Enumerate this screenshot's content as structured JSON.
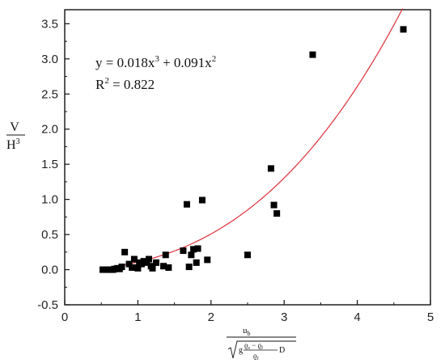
{
  "chart_data": {
    "type": "scatter",
    "xlim": [
      0,
      5
    ],
    "ylim": [
      -0.5,
      3.7
    ],
    "x_ticks": [
      0,
      1,
      2,
      3,
      4,
      5
    ],
    "y_ticks": [
      -0.5,
      0.0,
      0.5,
      1.0,
      1.5,
      2.0,
      2.5,
      3.0,
      3.5
    ],
    "x_tick_labels": [
      "0",
      "1",
      "2",
      "3",
      "4",
      "5"
    ],
    "y_tick_labels": [
      "-0.5",
      "0.0",
      "0.5",
      "1.0",
      "1.5",
      "2.0",
      "2.5",
      "3.0",
      "3.5"
    ],
    "ylabel": {
      "numerator": "V",
      "denominator": "H",
      "denominator_sup": "3"
    },
    "xlabel": {
      "numerator": "u",
      "numerator_sub": "b",
      "g": "g",
      "rho_s": "ϱ",
      "rho_s_sub": "s",
      "minus": " − ",
      "rho_f": "ϱ",
      "rho_f_sub": "f",
      "d": "D"
    },
    "annotation": {
      "equation": {
        "prefix": "y = 0.018x",
        "sup1": "3",
        "middle": " + 0.091x",
        "sup2": "2"
      },
      "r2": {
        "prefix": "R",
        "sup": "2",
        "suffix": " = 0.822"
      }
    },
    "fit": {
      "a3": 0.018,
      "a2": 0.091,
      "x_start": 0.55,
      "x_end": 4.62,
      "color": "#e0303a"
    },
    "marker_color": "#000000",
    "points": [
      [
        0.52,
        0.0
      ],
      [
        0.58,
        0.0
      ],
      [
        0.62,
        0.0
      ],
      [
        0.66,
        0.0
      ],
      [
        0.68,
        0.01
      ],
      [
        0.72,
        0.02
      ],
      [
        0.75,
        0.01
      ],
      [
        0.78,
        0.04
      ],
      [
        0.82,
        0.25
      ],
      [
        0.88,
        0.08
      ],
      [
        0.92,
        0.03
      ],
      [
        0.95,
        0.15
      ],
      [
        0.97,
        0.03
      ],
      [
        1.0,
        0.02
      ],
      [
        1.02,
        0.1
      ],
      [
        1.05,
        0.08
      ],
      [
        1.08,
        0.12
      ],
      [
        1.12,
        0.1
      ],
      [
        1.15,
        0.15
      ],
      [
        1.18,
        0.05
      ],
      [
        1.2,
        0.02
      ],
      [
        1.25,
        0.1
      ],
      [
        1.35,
        0.05
      ],
      [
        1.38,
        0.21
      ],
      [
        1.42,
        0.03
      ],
      [
        1.62,
        0.27
      ],
      [
        1.67,
        0.93
      ],
      [
        1.7,
        0.04
      ],
      [
        1.73,
        0.21
      ],
      [
        1.76,
        0.29
      ],
      [
        1.8,
        0.1
      ],
      [
        1.82,
        0.3
      ],
      [
        1.88,
        0.99
      ],
      [
        1.95,
        0.14
      ],
      [
        2.5,
        0.21
      ],
      [
        2.82,
        1.44
      ],
      [
        2.86,
        0.92
      ],
      [
        2.9,
        0.8
      ],
      [
        3.39,
        3.06
      ],
      [
        4.63,
        3.42
      ]
    ]
  }
}
